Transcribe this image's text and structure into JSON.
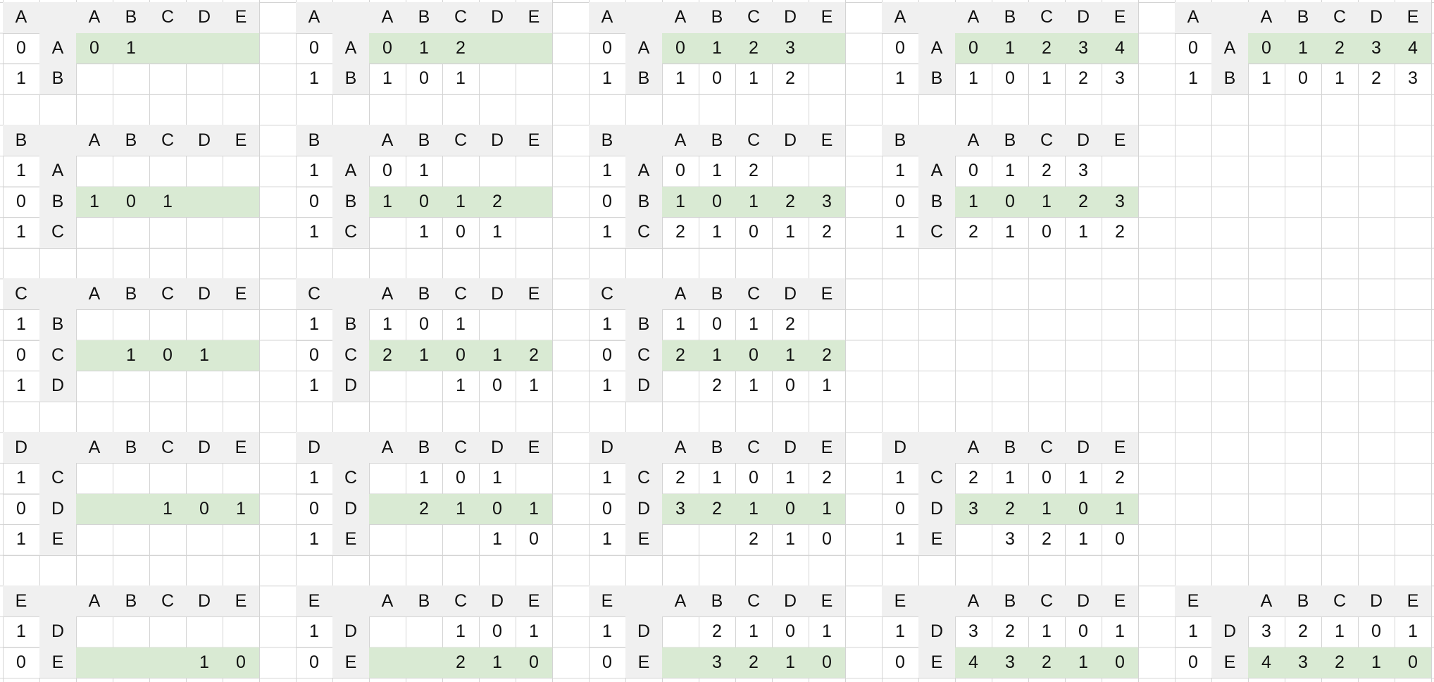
{
  "colors": {
    "grid_line": "#d4d4d4",
    "header_fill": "#f0f0f0",
    "highlight_fill": "#d9ead3"
  },
  "blocks": [
    {
      "id": "A-1",
      "label": "A",
      "headers": [
        "A",
        "B",
        "C",
        "D",
        "E"
      ],
      "rows": [
        {
          "weight": "0",
          "letter": "A",
          "values": [
            "0",
            "1",
            "",
            "",
            ""
          ],
          "highlight": true
        },
        {
          "weight": "1",
          "letter": "B",
          "values": [
            "",
            "",
            "",
            "",
            ""
          ],
          "highlight": false
        }
      ]
    },
    {
      "id": "A-2",
      "label": "A",
      "headers": [
        "A",
        "B",
        "C",
        "D",
        "E"
      ],
      "rows": [
        {
          "weight": "0",
          "letter": "A",
          "values": [
            "0",
            "1",
            "2",
            "",
            ""
          ],
          "highlight": true
        },
        {
          "weight": "1",
          "letter": "B",
          "values": [
            "1",
            "0",
            "1",
            "",
            ""
          ],
          "highlight": false
        }
      ]
    },
    {
      "id": "A-3",
      "label": "A",
      "headers": [
        "A",
        "B",
        "C",
        "D",
        "E"
      ],
      "rows": [
        {
          "weight": "0",
          "letter": "A",
          "values": [
            "0",
            "1",
            "2",
            "3",
            ""
          ],
          "highlight": true
        },
        {
          "weight": "1",
          "letter": "B",
          "values": [
            "1",
            "0",
            "1",
            "2",
            ""
          ],
          "highlight": false
        }
      ]
    },
    {
      "id": "A-4",
      "label": "A",
      "headers": [
        "A",
        "B",
        "C",
        "D",
        "E"
      ],
      "rows": [
        {
          "weight": "0",
          "letter": "A",
          "values": [
            "0",
            "1",
            "2",
            "3",
            "4"
          ],
          "highlight": true
        },
        {
          "weight": "1",
          "letter": "B",
          "values": [
            "1",
            "0",
            "1",
            "2",
            "3"
          ],
          "highlight": false
        }
      ]
    },
    {
      "id": "A-5",
      "label": "A",
      "headers": [
        "A",
        "B",
        "C",
        "D",
        "E"
      ],
      "rows": [
        {
          "weight": "0",
          "letter": "A",
          "values": [
            "0",
            "1",
            "2",
            "3",
            "4"
          ],
          "highlight": true
        },
        {
          "weight": "1",
          "letter": "B",
          "values": [
            "1",
            "0",
            "1",
            "2",
            "3"
          ],
          "highlight": false
        }
      ]
    },
    {
      "id": "B-1",
      "label": "B",
      "headers": [
        "A",
        "B",
        "C",
        "D",
        "E"
      ],
      "rows": [
        {
          "weight": "1",
          "letter": "A",
          "values": [
            "",
            "",
            "",
            "",
            ""
          ],
          "highlight": false
        },
        {
          "weight": "0",
          "letter": "B",
          "values": [
            "1",
            "0",
            "1",
            "",
            ""
          ],
          "highlight": true
        },
        {
          "weight": "1",
          "letter": "C",
          "values": [
            "",
            "",
            "",
            "",
            ""
          ],
          "highlight": false
        }
      ]
    },
    {
      "id": "B-2",
      "label": "B",
      "headers": [
        "A",
        "B",
        "C",
        "D",
        "E"
      ],
      "rows": [
        {
          "weight": "1",
          "letter": "A",
          "values": [
            "0",
            "1",
            "",
            "",
            ""
          ],
          "highlight": false
        },
        {
          "weight": "0",
          "letter": "B",
          "values": [
            "1",
            "0",
            "1",
            "2",
            ""
          ],
          "highlight": true
        },
        {
          "weight": "1",
          "letter": "C",
          "values": [
            "",
            "1",
            "0",
            "1",
            ""
          ],
          "highlight": false
        }
      ]
    },
    {
      "id": "B-3",
      "label": "B",
      "headers": [
        "A",
        "B",
        "C",
        "D",
        "E"
      ],
      "rows": [
        {
          "weight": "1",
          "letter": "A",
          "values": [
            "0",
            "1",
            "2",
            "",
            ""
          ],
          "highlight": false
        },
        {
          "weight": "0",
          "letter": "B",
          "values": [
            "1",
            "0",
            "1",
            "2",
            "3"
          ],
          "highlight": true
        },
        {
          "weight": "1",
          "letter": "C",
          "values": [
            "2",
            "1",
            "0",
            "1",
            "2"
          ],
          "highlight": false
        }
      ]
    },
    {
      "id": "B-4",
      "label": "B",
      "headers": [
        "A",
        "B",
        "C",
        "D",
        "E"
      ],
      "rows": [
        {
          "weight": "1",
          "letter": "A",
          "values": [
            "0",
            "1",
            "2",
            "3",
            ""
          ],
          "highlight": false
        },
        {
          "weight": "0",
          "letter": "B",
          "values": [
            "1",
            "0",
            "1",
            "2",
            "3"
          ],
          "highlight": true
        },
        {
          "weight": "1",
          "letter": "C",
          "values": [
            "2",
            "1",
            "0",
            "1",
            "2"
          ],
          "highlight": false
        }
      ]
    },
    {
      "id": "C-1",
      "label": "C",
      "headers": [
        "A",
        "B",
        "C",
        "D",
        "E"
      ],
      "rows": [
        {
          "weight": "1",
          "letter": "B",
          "values": [
            "",
            "",
            "",
            "",
            ""
          ],
          "highlight": false
        },
        {
          "weight": "0",
          "letter": "C",
          "values": [
            "",
            "1",
            "0",
            "1",
            ""
          ],
          "highlight": true
        },
        {
          "weight": "1",
          "letter": "D",
          "values": [
            "",
            "",
            "",
            "",
            ""
          ],
          "highlight": false
        }
      ]
    },
    {
      "id": "C-2",
      "label": "C",
      "headers": [
        "A",
        "B",
        "C",
        "D",
        "E"
      ],
      "rows": [
        {
          "weight": "1",
          "letter": "B",
          "values": [
            "1",
            "0",
            "1",
            "",
            ""
          ],
          "highlight": false
        },
        {
          "weight": "0",
          "letter": "C",
          "values": [
            "2",
            "1",
            "0",
            "1",
            "2"
          ],
          "highlight": true
        },
        {
          "weight": "1",
          "letter": "D",
          "values": [
            "",
            "",
            "1",
            "0",
            "1"
          ],
          "highlight": false
        }
      ]
    },
    {
      "id": "C-3",
      "label": "C",
      "headers": [
        "A",
        "B",
        "C",
        "D",
        "E"
      ],
      "rows": [
        {
          "weight": "1",
          "letter": "B",
          "values": [
            "1",
            "0",
            "1",
            "2",
            ""
          ],
          "highlight": false
        },
        {
          "weight": "0",
          "letter": "C",
          "values": [
            "2",
            "1",
            "0",
            "1",
            "2"
          ],
          "highlight": true
        },
        {
          "weight": "1",
          "letter": "D",
          "values": [
            "",
            "2",
            "1",
            "0",
            "1"
          ],
          "highlight": false
        }
      ]
    },
    {
      "id": "D-1",
      "label": "D",
      "headers": [
        "A",
        "B",
        "C",
        "D",
        "E"
      ],
      "rows": [
        {
          "weight": "1",
          "letter": "C",
          "values": [
            "",
            "",
            "",
            "",
            ""
          ],
          "highlight": false
        },
        {
          "weight": "0",
          "letter": "D",
          "values": [
            "",
            "",
            "1",
            "0",
            "1"
          ],
          "highlight": true
        },
        {
          "weight": "1",
          "letter": "E",
          "values": [
            "",
            "",
            "",
            "",
            ""
          ],
          "highlight": false
        }
      ]
    },
    {
      "id": "D-2",
      "label": "D",
      "headers": [
        "A",
        "B",
        "C",
        "D",
        "E"
      ],
      "rows": [
        {
          "weight": "1",
          "letter": "C",
          "values": [
            "",
            "1",
            "0",
            "1",
            ""
          ],
          "highlight": false
        },
        {
          "weight": "0",
          "letter": "D",
          "values": [
            "",
            "2",
            "1",
            "0",
            "1"
          ],
          "highlight": true
        },
        {
          "weight": "1",
          "letter": "E",
          "values": [
            "",
            "",
            "",
            "1",
            "0"
          ],
          "highlight": false
        }
      ]
    },
    {
      "id": "D-3",
      "label": "D",
      "headers": [
        "A",
        "B",
        "C",
        "D",
        "E"
      ],
      "rows": [
        {
          "weight": "1",
          "letter": "C",
          "values": [
            "2",
            "1",
            "0",
            "1",
            "2"
          ],
          "highlight": false
        },
        {
          "weight": "0",
          "letter": "D",
          "values": [
            "3",
            "2",
            "1",
            "0",
            "1"
          ],
          "highlight": true
        },
        {
          "weight": "1",
          "letter": "E",
          "values": [
            "",
            "",
            "2",
            "1",
            "0"
          ],
          "highlight": false
        }
      ]
    },
    {
      "id": "D-4",
      "label": "D",
      "headers": [
        "A",
        "B",
        "C",
        "D",
        "E"
      ],
      "rows": [
        {
          "weight": "1",
          "letter": "C",
          "values": [
            "2",
            "1",
            "0",
            "1",
            "2"
          ],
          "highlight": false
        },
        {
          "weight": "0",
          "letter": "D",
          "values": [
            "3",
            "2",
            "1",
            "0",
            "1"
          ],
          "highlight": true
        },
        {
          "weight": "1",
          "letter": "E",
          "values": [
            "",
            "3",
            "2",
            "1",
            "0"
          ],
          "highlight": false
        }
      ]
    },
    {
      "id": "E-1",
      "label": "E",
      "headers": [
        "A",
        "B",
        "C",
        "D",
        "E"
      ],
      "rows": [
        {
          "weight": "1",
          "letter": "D",
          "values": [
            "",
            "",
            "",
            "",
            ""
          ],
          "highlight": false
        },
        {
          "weight": "0",
          "letter": "E",
          "values": [
            "",
            "",
            "",
            "1",
            "0"
          ],
          "highlight": true
        }
      ]
    },
    {
      "id": "E-2",
      "label": "E",
      "headers": [
        "A",
        "B",
        "C",
        "D",
        "E"
      ],
      "rows": [
        {
          "weight": "1",
          "letter": "D",
          "values": [
            "",
            "",
            "1",
            "0",
            "1"
          ],
          "highlight": false
        },
        {
          "weight": "0",
          "letter": "E",
          "values": [
            "",
            "",
            "2",
            "1",
            "0"
          ],
          "highlight": true
        }
      ]
    },
    {
      "id": "E-3",
      "label": "E",
      "headers": [
        "A",
        "B",
        "C",
        "D",
        "E"
      ],
      "rows": [
        {
          "weight": "1",
          "letter": "D",
          "values": [
            "",
            "2",
            "1",
            "0",
            "1"
          ],
          "highlight": false
        },
        {
          "weight": "0",
          "letter": "E",
          "values": [
            "",
            "3",
            "2",
            "1",
            "0"
          ],
          "highlight": true
        }
      ]
    },
    {
      "id": "E-4",
      "label": "E",
      "headers": [
        "A",
        "B",
        "C",
        "D",
        "E"
      ],
      "rows": [
        {
          "weight": "1",
          "letter": "D",
          "values": [
            "3",
            "2",
            "1",
            "0",
            "1"
          ],
          "highlight": false
        },
        {
          "weight": "0",
          "letter": "E",
          "values": [
            "4",
            "3",
            "2",
            "1",
            "0"
          ],
          "highlight": true
        }
      ]
    },
    {
      "id": "E-5",
      "label": "E",
      "headers": [
        "A",
        "B",
        "C",
        "D",
        "E"
      ],
      "rows": [
        {
          "weight": "1",
          "letter": "D",
          "values": [
            "3",
            "2",
            "1",
            "0",
            "1"
          ],
          "highlight": false
        },
        {
          "weight": "0",
          "letter": "E",
          "values": [
            "4",
            "3",
            "2",
            "1",
            "0"
          ],
          "highlight": true
        }
      ]
    }
  ]
}
